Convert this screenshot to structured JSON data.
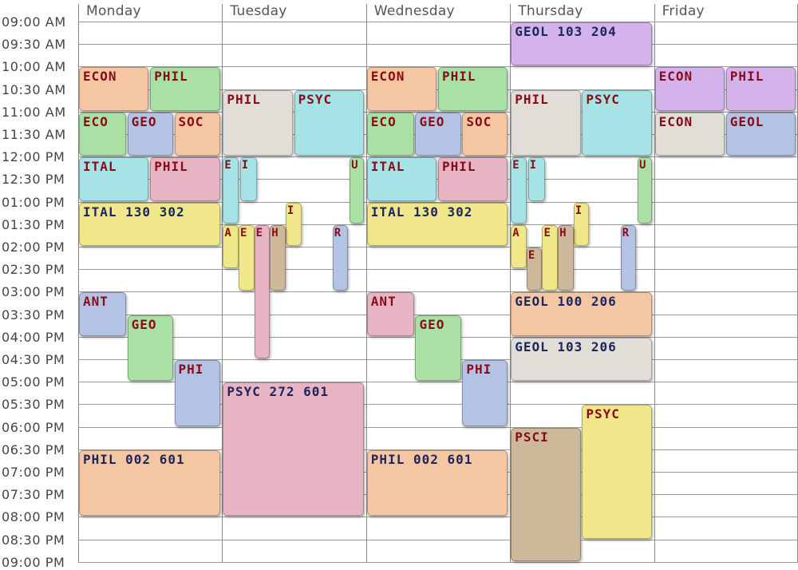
{
  "days": [
    "Monday",
    "Tuesday",
    "Wednesday",
    "Thursday",
    "Friday"
  ],
  "times": [
    "09:00 AM",
    "09:30 AM",
    "10:00 AM",
    "10:30 AM",
    "11:00 AM",
    "11:30 AM",
    "12:00 PM",
    "12:30 PM",
    "01:00 PM",
    "01:30 PM",
    "02:00 PM",
    "02:30 PM",
    "03:00 PM",
    "03:30 PM",
    "04:00 PM",
    "04:30 PM",
    "05:00 PM",
    "05:30 PM",
    "06:00 PM",
    "06:30 PM",
    "07:00 PM",
    "07:30 PM",
    "08:00 PM",
    "08:30 PM",
    "09:00 PM"
  ],
  "palette": {
    "orange": "#f4c6a2",
    "green": "#a9e0a3",
    "blue": "#b4c3e3",
    "pink": "#e6b4c2",
    "cyan": "#a6e3e6",
    "yellow": "#efe78a",
    "purple": "#d4b3ec",
    "gray": "#e1ded7",
    "tan": "#cdb99a",
    "red_text": "#8b0a1a",
    "navy_text": "#1c2660"
  },
  "events": [
    {
      "day": 0,
      "start": "10:00",
      "end": "11:00",
      "label": "ECON",
      "color": "orange",
      "text": "red"
    },
    {
      "day": 0,
      "start": "10:00",
      "end": "11:00",
      "label": "PHIL",
      "color": "green",
      "text": "red"
    },
    {
      "day": 0,
      "start": "11:00",
      "end": "12:00",
      "label": "ECO",
      "color": "green",
      "text": "red"
    },
    {
      "day": 0,
      "start": "11:00",
      "end": "12:00",
      "label": "GEO",
      "color": "blue",
      "text": "red"
    },
    {
      "day": 0,
      "start": "11:00",
      "end": "12:00",
      "label": "SOC",
      "color": "orange",
      "text": "red"
    },
    {
      "day": 0,
      "start": "12:00",
      "end": "13:00",
      "label": "ITAL",
      "color": "cyan",
      "text": "red"
    },
    {
      "day": 0,
      "start": "12:00",
      "end": "13:00",
      "label": "PHIL",
      "color": "pink",
      "text": "red"
    },
    {
      "day": 0,
      "start": "13:00",
      "end": "14:00",
      "label": "ITAL 130 302",
      "color": "yellow",
      "text": "navy"
    },
    {
      "day": 0,
      "start": "15:00",
      "end": "16:00",
      "label": "ANT",
      "color": "blue",
      "text": "red"
    },
    {
      "day": 0,
      "start": "15:30",
      "end": "17:00",
      "label": "GEO",
      "color": "green",
      "text": "red"
    },
    {
      "day": 0,
      "start": "16:30",
      "end": "18:00",
      "label": "PHI",
      "color": "blue",
      "text": "red"
    },
    {
      "day": 0,
      "start": "18:30",
      "end": "20:00",
      "label": "PHIL 002 601",
      "color": "orange",
      "text": "navy"
    },
    {
      "day": 1,
      "start": "10:30",
      "end": "12:00",
      "label": "PHIL",
      "color": "gray",
      "text": "red"
    },
    {
      "day": 1,
      "start": "10:30",
      "end": "12:00",
      "label": "PSYC",
      "color": "cyan",
      "text": "red"
    },
    {
      "day": 1,
      "start": "12:00",
      "end": "13:30",
      "label": "E",
      "color": "cyan",
      "text": "red"
    },
    {
      "day": 1,
      "start": "12:00",
      "end": "13:00",
      "label": "I",
      "color": "cyan",
      "text": "red"
    },
    {
      "day": 1,
      "start": "12:00",
      "end": "13:30",
      "label": "U",
      "color": "green",
      "text": "red"
    },
    {
      "day": 1,
      "start": "13:00",
      "end": "14:00",
      "label": "I",
      "color": "yellow",
      "text": "red"
    },
    {
      "day": 1,
      "start": "13:30",
      "end": "14:30",
      "label": "A",
      "color": "yellow",
      "text": "red"
    },
    {
      "day": 1,
      "start": "13:30",
      "end": "15:00",
      "label": "E",
      "color": "yellow",
      "text": "red"
    },
    {
      "day": 1,
      "start": "13:30",
      "end": "16:30",
      "label": "E",
      "color": "pink",
      "text": "red"
    },
    {
      "day": 1,
      "start": "13:30",
      "end": "15:00",
      "label": "H",
      "color": "tan",
      "text": "red"
    },
    {
      "day": 1,
      "start": "13:30",
      "end": "15:00",
      "label": "R",
      "color": "blue",
      "text": "red"
    },
    {
      "day": 1,
      "start": "17:00",
      "end": "20:00",
      "label": "PSYC 272 601",
      "color": "pink",
      "text": "navy"
    },
    {
      "day": 2,
      "start": "10:00",
      "end": "11:00",
      "label": "ECON",
      "color": "orange",
      "text": "red"
    },
    {
      "day": 2,
      "start": "10:00",
      "end": "11:00",
      "label": "PHIL",
      "color": "green",
      "text": "red"
    },
    {
      "day": 2,
      "start": "11:00",
      "end": "12:00",
      "label": "ECO",
      "color": "green",
      "text": "red"
    },
    {
      "day": 2,
      "start": "11:00",
      "end": "12:00",
      "label": "GEO",
      "color": "blue",
      "text": "red"
    },
    {
      "day": 2,
      "start": "11:00",
      "end": "12:00",
      "label": "SOC",
      "color": "orange",
      "text": "red"
    },
    {
      "day": 2,
      "start": "12:00",
      "end": "13:00",
      "label": "ITAL",
      "color": "cyan",
      "text": "red"
    },
    {
      "day": 2,
      "start": "12:00",
      "end": "13:00",
      "label": "PHIL",
      "color": "pink",
      "text": "red"
    },
    {
      "day": 2,
      "start": "13:00",
      "end": "14:00",
      "label": "ITAL 130 302",
      "color": "yellow",
      "text": "navy"
    },
    {
      "day": 2,
      "start": "15:00",
      "end": "16:00",
      "label": "ANT",
      "color": "pink",
      "text": "red"
    },
    {
      "day": 2,
      "start": "15:30",
      "end": "17:00",
      "label": "GEO",
      "color": "green",
      "text": "red"
    },
    {
      "day": 2,
      "start": "16:30",
      "end": "18:00",
      "label": "PHI",
      "color": "blue",
      "text": "red"
    },
    {
      "day": 2,
      "start": "18:30",
      "end": "20:00",
      "label": "PHIL 002 601",
      "color": "orange",
      "text": "navy"
    },
    {
      "day": 3,
      "start": "09:00",
      "end": "10:00",
      "label": "GEOL 103 204",
      "color": "purple",
      "text": "navy"
    },
    {
      "day": 3,
      "start": "10:30",
      "end": "12:00",
      "label": "PHIL",
      "color": "gray",
      "text": "red"
    },
    {
      "day": 3,
      "start": "10:30",
      "end": "12:00",
      "label": "PSYC",
      "color": "cyan",
      "text": "red"
    },
    {
      "day": 3,
      "start": "12:00",
      "end": "13:30",
      "label": "E",
      "color": "cyan",
      "text": "red"
    },
    {
      "day": 3,
      "start": "12:00",
      "end": "13:00",
      "label": "I",
      "color": "cyan",
      "text": "red"
    },
    {
      "day": 3,
      "start": "12:00",
      "end": "13:30",
      "label": "U",
      "color": "green",
      "text": "red"
    },
    {
      "day": 3,
      "start": "13:00",
      "end": "14:00",
      "label": "I",
      "color": "yellow",
      "text": "red"
    },
    {
      "day": 3,
      "start": "13:30",
      "end": "14:30",
      "label": "A",
      "color": "yellow",
      "text": "red"
    },
    {
      "day": 3,
      "start": "14:00",
      "end": "15:00",
      "label": "E",
      "color": "tan",
      "text": "red"
    },
    {
      "day": 3,
      "start": "13:30",
      "end": "15:00",
      "label": "E",
      "color": "yellow",
      "text": "red"
    },
    {
      "day": 3,
      "start": "13:30",
      "end": "15:00",
      "label": "H",
      "color": "tan",
      "text": "red"
    },
    {
      "day": 3,
      "start": "13:30",
      "end": "15:00",
      "label": "R",
      "color": "blue",
      "text": "red"
    },
    {
      "day": 3,
      "start": "15:00",
      "end": "16:00",
      "label": "GEOL 100 206",
      "color": "orange",
      "text": "navy"
    },
    {
      "day": 3,
      "start": "16:00",
      "end": "17:00",
      "label": "GEOL 103 206",
      "color": "gray",
      "text": "navy"
    },
    {
      "day": 3,
      "start": "18:00",
      "end": "21:00",
      "label": "PSCI",
      "color": "tan",
      "text": "red"
    },
    {
      "day": 3,
      "start": "17:30",
      "end": "20:30",
      "label": "PSYC",
      "color": "yellow",
      "text": "red"
    },
    {
      "day": 4,
      "start": "10:00",
      "end": "11:00",
      "label": "ECON",
      "color": "purple",
      "text": "red"
    },
    {
      "day": 4,
      "start": "10:00",
      "end": "11:00",
      "label": "PHIL",
      "color": "purple",
      "text": "red"
    },
    {
      "day": 4,
      "start": "11:00",
      "end": "12:00",
      "label": "ECON",
      "color": "gray",
      "text": "red"
    },
    {
      "day": 4,
      "start": "11:00",
      "end": "12:00",
      "label": "GEOL",
      "color": "blue",
      "text": "red"
    }
  ]
}
